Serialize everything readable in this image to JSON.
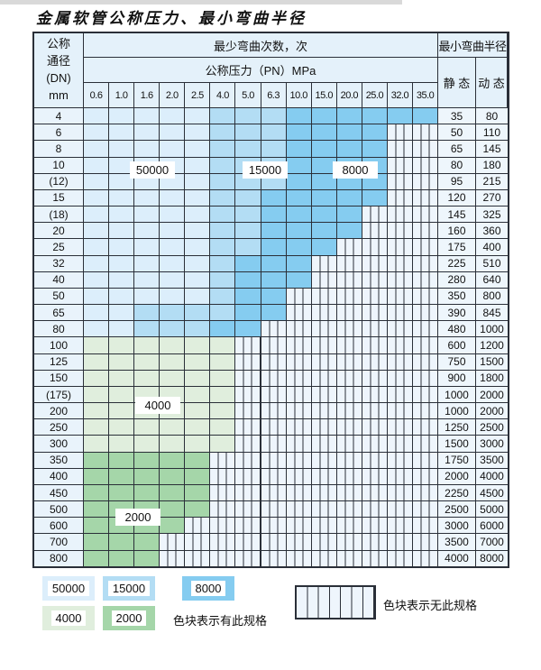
{
  "title": "金属软管公称压力、最小弯曲半径",
  "table": {
    "corner_lines": [
      "公称",
      "通径",
      "(DN)",
      "mm"
    ],
    "bend_header": "最少弯曲次数，次",
    "pressure_header": "公称压力（PN）MPa",
    "pressure_columns": [
      "0.6",
      "1.0",
      "1.6",
      "2.0",
      "2.5",
      "4.0",
      "5.0",
      "6.3",
      "10.0",
      "15.0",
      "20.0",
      "25.0",
      "32.0",
      "35.0"
    ],
    "radius_header": "最小弯曲半径",
    "static_label": "静 态",
    "dynamic_label": "动 态",
    "cell_legend": {
      "1": "50000次",
      "2": "15000次",
      "3": "8000次",
      "4": "4000次",
      "5": "2000次",
      "-": "无此规格"
    },
    "rows": [
      {
        "dn": "4",
        "cells": "11111222333333",
        "static": "35",
        "dynamic": "80"
      },
      {
        "dn": "6",
        "cells": "111112223333--",
        "static": "50",
        "dynamic": "110"
      },
      {
        "dn": "8",
        "cells": "111112223333--",
        "static": "65",
        "dynamic": "145"
      },
      {
        "dn": "10",
        "cells": "111112223333--",
        "static": "80",
        "dynamic": "180"
      },
      {
        "dn": "(12)",
        "cells": "111112223333--",
        "static": "95",
        "dynamic": "215"
      },
      {
        "dn": "15",
        "cells": "111112233333--",
        "static": "120",
        "dynamic": "270"
      },
      {
        "dn": "(18)",
        "cells": "11111223333---",
        "static": "145",
        "dynamic": "325"
      },
      {
        "dn": "20",
        "cells": "11111223333---",
        "static": "160",
        "dynamic": "360"
      },
      {
        "dn": "25",
        "cells": "1111122333----",
        "static": "175",
        "dynamic": "400"
      },
      {
        "dn": "32",
        "cells": "111112333-----",
        "static": "225",
        "dynamic": "510"
      },
      {
        "dn": "40",
        "cells": "111112333-----",
        "static": "280",
        "dynamic": "640"
      },
      {
        "dn": "50",
        "cells": "11111233------",
        "static": "350",
        "dynamic": "800"
      },
      {
        "dn": "65",
        "cells": "11222233------",
        "static": "390",
        "dynamic": "845"
      },
      {
        "dn": "80",
        "cells": "1122233-------",
        "static": "480",
        "dynamic": "1000"
      },
      {
        "dn": "100",
        "cells": "444444--------",
        "static": "600",
        "dynamic": "1200"
      },
      {
        "dn": "125",
        "cells": "444444--------",
        "static": "750",
        "dynamic": "1500"
      },
      {
        "dn": "150",
        "cells": "444444--------",
        "static": "900",
        "dynamic": "1800"
      },
      {
        "dn": "(175)",
        "cells": "444444--------",
        "static": "1000",
        "dynamic": "2000"
      },
      {
        "dn": "200",
        "cells": "444444--------",
        "static": "1000",
        "dynamic": "2000"
      },
      {
        "dn": "250",
        "cells": "444444--------",
        "static": "1250",
        "dynamic": "2500"
      },
      {
        "dn": "300",
        "cells": "444444--------",
        "static": "1500",
        "dynamic": "3000"
      },
      {
        "dn": "350",
        "cells": "55555---------",
        "static": "1750",
        "dynamic": "3500"
      },
      {
        "dn": "400",
        "cells": "55555---------",
        "static": "2000",
        "dynamic": "4000"
      },
      {
        "dn": "450",
        "cells": "55555---------",
        "static": "2250",
        "dynamic": "4500"
      },
      {
        "dn": "500",
        "cells": "55555---------",
        "static": "2500",
        "dynamic": "5000"
      },
      {
        "dn": "600",
        "cells": "5555----------",
        "static": "3000",
        "dynamic": "6000"
      },
      {
        "dn": "700",
        "cells": "555-----------",
        "static": "3500",
        "dynamic": "7000"
      },
      {
        "dn": "800",
        "cells": "555-----------",
        "static": "4000",
        "dynamic": "8000"
      }
    ]
  },
  "region_labels": [
    {
      "text": "50000"
    },
    {
      "text": "15000"
    },
    {
      "text": "8000"
    },
    {
      "text": "4000"
    },
    {
      "text": "2000"
    }
  ],
  "legend": {
    "items": [
      {
        "text": "50000",
        "color": "#dceefb"
      },
      {
        "text": "15000",
        "color": "#b3ddf4"
      },
      {
        "text": "8000",
        "color": "#85ccf0"
      },
      {
        "text": "4000",
        "color": "#e0eedd"
      },
      {
        "text": "2000",
        "color": "#a5d6a9"
      }
    ],
    "has_spec_text": "色块表示有此规格",
    "no_spec_text": "色块表示无此规格"
  },
  "colors": {
    "c1": "#dceefb",
    "c2": "#b3ddf4",
    "c3": "#85ccf0",
    "c4": "#e0eedd",
    "c5": "#a5d6a9",
    "hatchbg": "#eef5fc",
    "grid": "#2a2f38",
    "headerbg": "#e4f1fa",
    "labelbg": "#e9f3fb",
    "valuebg": "#eef6fc"
  }
}
